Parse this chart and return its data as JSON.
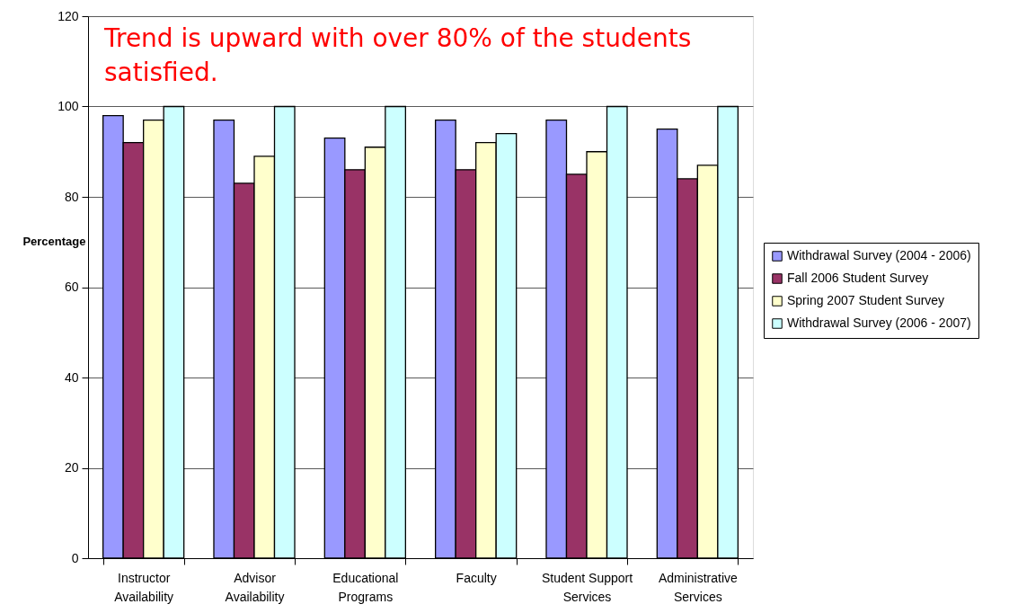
{
  "chart_data": {
    "type": "bar",
    "ylabel": "Percentage",
    "annotations": [
      "Trend is upward with over 80% of the students satisfied."
    ],
    "categories": [
      "Instructor Availability",
      "Advisor Availability",
      "Educational Programs",
      "Faculty",
      "Student Support Services",
      "Administrative Services"
    ],
    "series": [
      {
        "name": "Withdrawal Survey (2004 - 2006)",
        "color": "#9999ff",
        "values": [
          98,
          97,
          93,
          97,
          97,
          95
        ]
      },
      {
        "name": "Fall 2006 Student Survey",
        "color": "#993366",
        "values": [
          92,
          83,
          86,
          86,
          85,
          84
        ]
      },
      {
        "name": "Spring 2007 Student Survey",
        "color": "#ffffcc",
        "values": [
          97,
          89,
          91,
          92,
          90,
          87
        ]
      },
      {
        "name": "Withdrawal Survey (2006 - 2007)",
        "color": "#ccffff",
        "values": [
          100,
          100,
          100,
          94,
          100,
          100
        ]
      }
    ],
    "ylim": [
      0,
      120
    ],
    "yticks": [
      0,
      20,
      40,
      60,
      80,
      100,
      120
    ],
    "grid": "y",
    "legend": "right"
  }
}
